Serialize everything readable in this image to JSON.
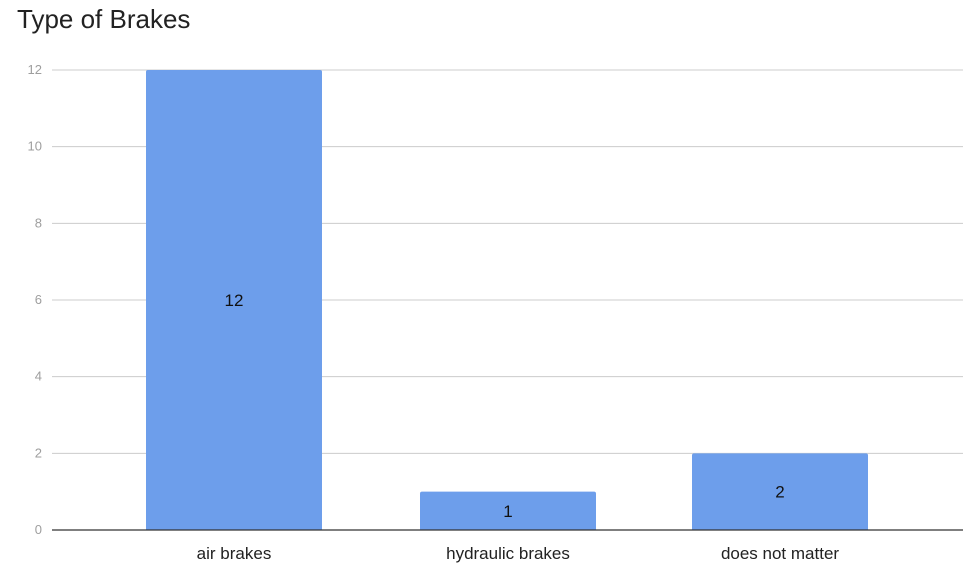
{
  "chart_data": {
    "type": "bar",
    "title": "Type of Brakes",
    "xlabel": "",
    "ylabel": "",
    "categories": [
      "air brakes",
      "hydraulic brakes",
      "does not matter"
    ],
    "values": [
      12,
      1,
      2
    ],
    "data_labels": [
      "12",
      "1",
      "2"
    ],
    "yticks": [
      0,
      2,
      4,
      6,
      8,
      10,
      12
    ],
    "ylim": [
      0,
      12
    ],
    "grid": true,
    "legend": "none",
    "colors": {
      "bar": "#6d9eeb",
      "grid": "#cccccc",
      "axis": "#333333"
    }
  }
}
